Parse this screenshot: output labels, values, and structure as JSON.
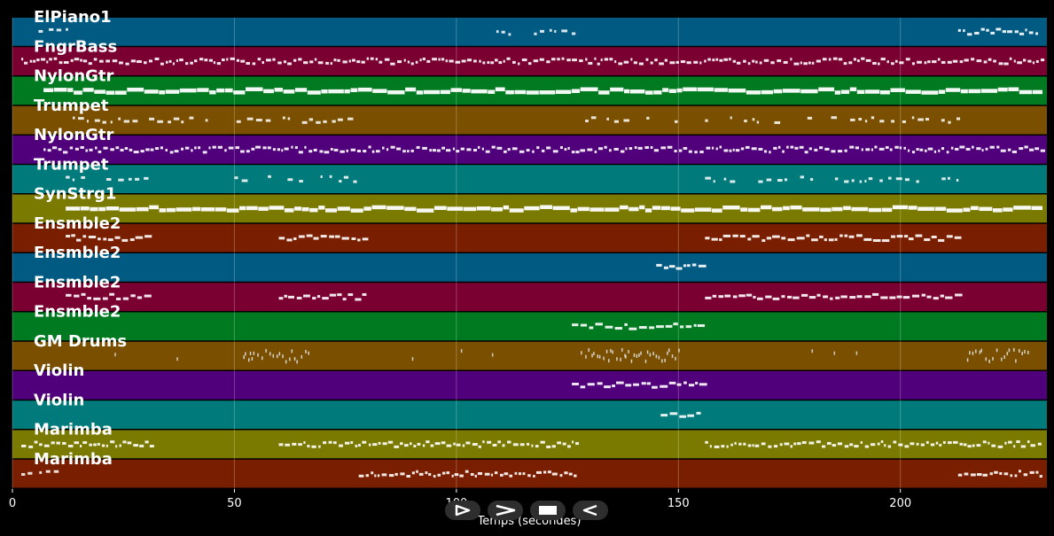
{
  "timeline": {
    "duration": 233,
    "ticks": [
      0,
      50,
      100,
      150,
      200
    ],
    "xlabel": "Temps (secondes)"
  },
  "tracks": [
    {
      "name": "ElPiano1",
      "color": "#005a82",
      "segments": [
        [
          2,
          12,
          "sparse"
        ],
        [
          109,
          127,
          "sparse"
        ],
        [
          213,
          231,
          "dense"
        ]
      ]
    },
    {
      "name": "FngrBass",
      "color": "#7a0032",
      "segments": [
        [
          2,
          232,
          "dense"
        ]
      ]
    },
    {
      "name": "NylonGtr",
      "color": "#007a20",
      "segments": [
        [
          7,
          232,
          "bar"
        ]
      ]
    },
    {
      "name": "Trumpet",
      "color": "#7a5000",
      "segments": [
        [
          12,
          78,
          "sparse"
        ],
        [
          129,
          150,
          "sparse"
        ],
        [
          156,
          213,
          "sparse"
        ]
      ]
    },
    {
      "name": "NylonGtr",
      "color": "#4f007a",
      "segments": [
        [
          7,
          232,
          "dense"
        ]
      ]
    },
    {
      "name": "Trumpet",
      "color": "#007a7a",
      "segments": [
        [
          12,
          30,
          "sparse"
        ],
        [
          50,
          78,
          "sparse"
        ],
        [
          156,
          213,
          "sparse"
        ]
      ]
    },
    {
      "name": "SynStrg1",
      "color": "#7a7a00",
      "segments": [
        [
          12,
          232,
          "bar"
        ]
      ]
    },
    {
      "name": "Ensmble2",
      "color": "#7a1e00",
      "segments": [
        [
          12,
          31,
          "dash"
        ],
        [
          60,
          79,
          "dash"
        ],
        [
          156,
          213,
          "dash"
        ]
      ]
    },
    {
      "name": "Ensmble2",
      "color": "#005a82",
      "segments": [
        [
          145,
          155,
          "dash"
        ]
      ]
    },
    {
      "name": "Ensmble2",
      "color": "#7a0032",
      "segments": [
        [
          12,
          31,
          "dash"
        ],
        [
          60,
          79,
          "dash"
        ],
        [
          156,
          213,
          "dash"
        ]
      ]
    },
    {
      "name": "Ensmble2",
      "color": "#007a20",
      "segments": [
        [
          126,
          155,
          "dash"
        ]
      ]
    },
    {
      "name": "GM Drums",
      "color": "#7a5000",
      "segments": [
        [
          52,
          67,
          "tick"
        ],
        [
          128,
          150,
          "tick"
        ],
        [
          215,
          229,
          "tick"
        ]
      ]
    },
    {
      "name": "Violin",
      "color": "#4f007a",
      "segments": [
        [
          126,
          155,
          "dash"
        ]
      ]
    },
    {
      "name": "Violin",
      "color": "#007a7a",
      "segments": [
        [
          146,
          155,
          "dash"
        ]
      ]
    },
    {
      "name": "Marimba",
      "color": "#7a7a00",
      "segments": [
        [
          2,
          31,
          "dense"
        ],
        [
          60,
          127,
          "dense"
        ],
        [
          156,
          232,
          "dense"
        ]
      ]
    },
    {
      "name": "Marimba",
      "color": "#7a1e00",
      "segments": [
        [
          2,
          12,
          "sparse"
        ],
        [
          78,
          127,
          "dense"
        ],
        [
          213,
          232,
          "dense"
        ]
      ]
    }
  ],
  "controls": [
    {
      "name": "play-button",
      "icon": "play-outline-icon"
    },
    {
      "name": "forward-button",
      "icon": "chevron-right-icon"
    },
    {
      "name": "stop-button",
      "icon": "stop-icon"
    },
    {
      "name": "rewind-button",
      "icon": "rewind-outline-icon"
    }
  ]
}
